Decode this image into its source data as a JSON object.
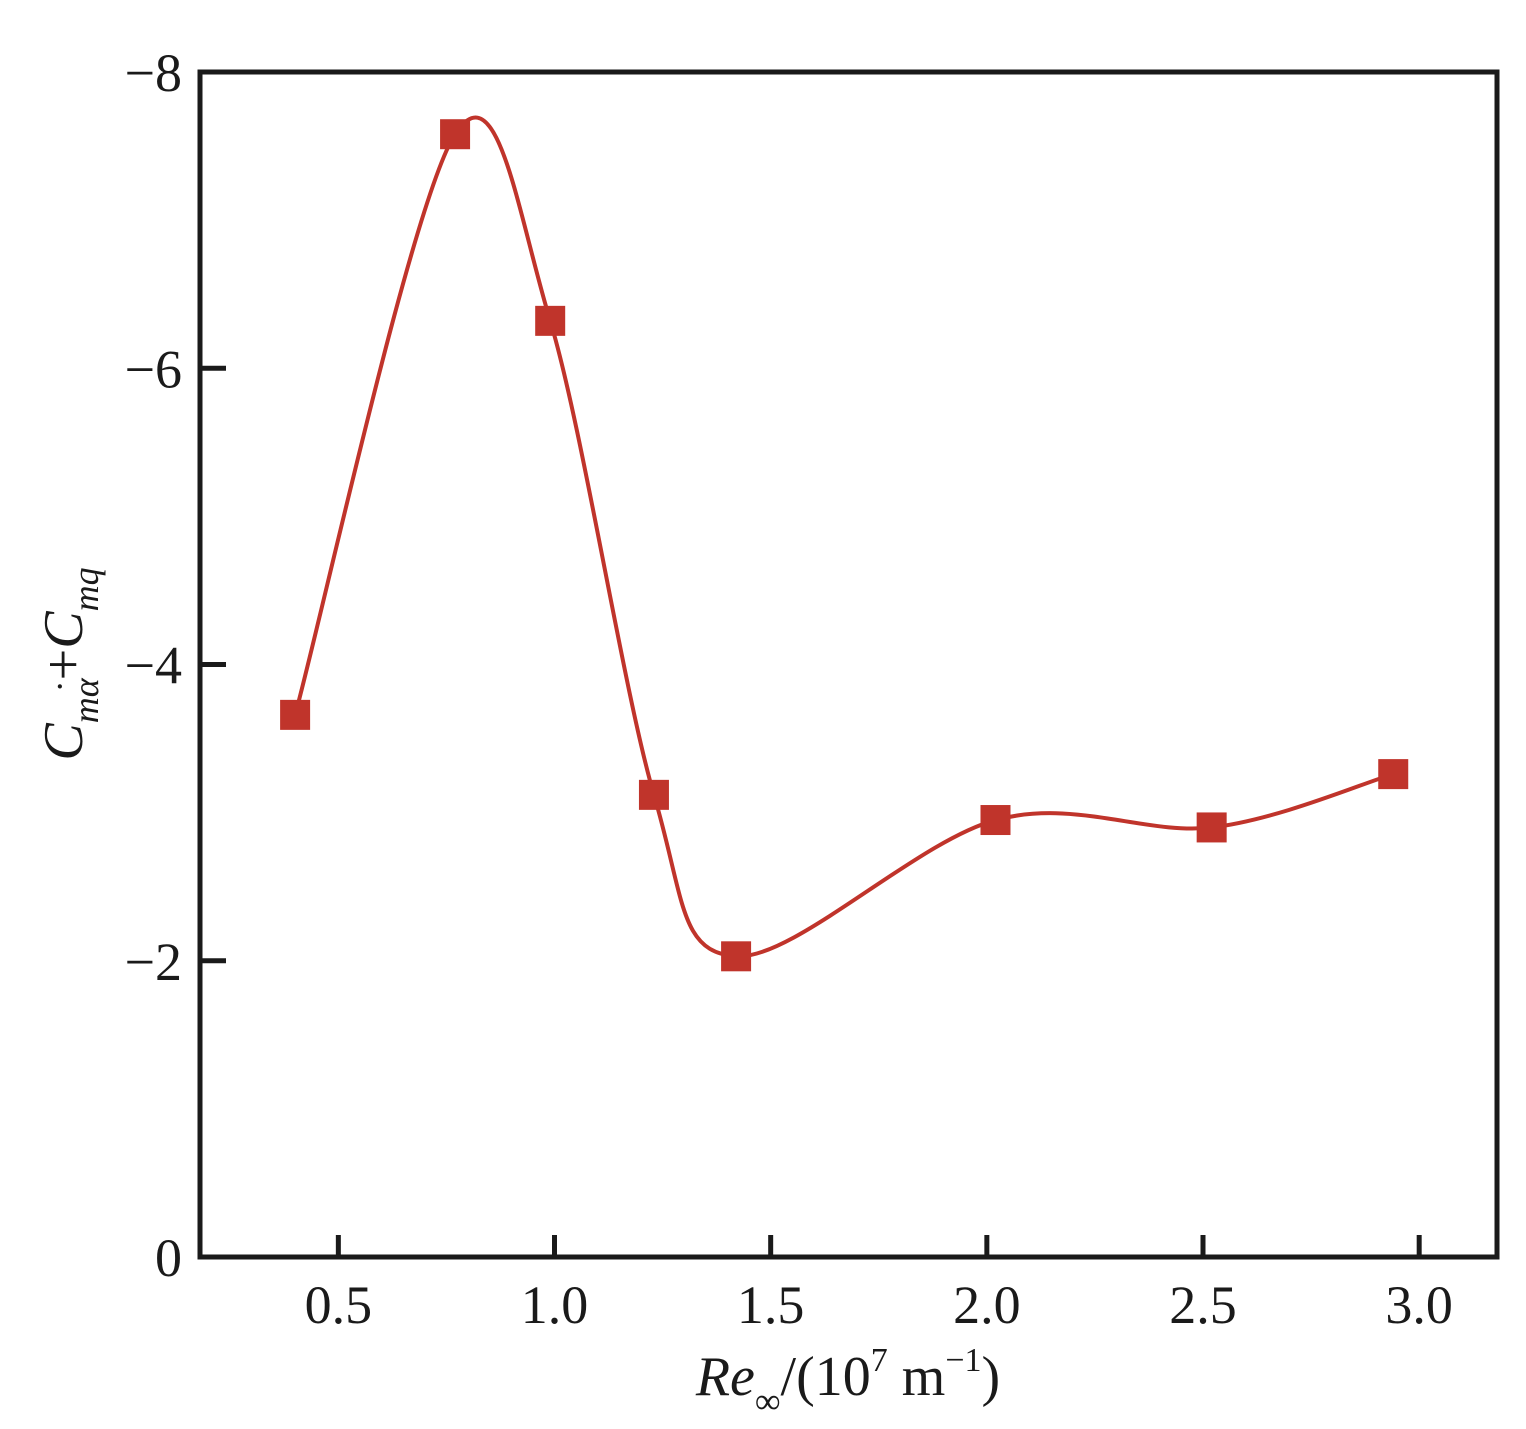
{
  "chart_data": {
    "type": "line",
    "xlabel": {
      "var": "Re",
      "sub": "∞",
      "unit_open": "/(10",
      "unit_exp": "7",
      "unit_mid": " m",
      "unit_exp2": "−1",
      "unit_close": ")"
    },
    "ylabel": {
      "c1": "C",
      "sub1": "m",
      "sub1b": "α",
      "dot": "·",
      "plus": "+",
      "c2": "C",
      "sub2": "mq"
    },
    "xlim": [
      0.18,
      3.18
    ],
    "ylim": [
      0,
      -8
    ],
    "y_inverted": true,
    "xticks": [
      0.5,
      1.0,
      1.5,
      2.0,
      2.5,
      3.0
    ],
    "xtick_labels": [
      "0.5",
      "1.0",
      "1.5",
      "2.0",
      "2.5",
      "3.0"
    ],
    "yticks": [
      0,
      -2,
      -4,
      -6,
      -8
    ],
    "ytick_labels": [
      "0",
      "−2",
      "−4",
      "−6",
      "−8"
    ],
    "grid": false,
    "legend": "none",
    "series": [
      {
        "marker": "square",
        "color": "#c0342b",
        "smooth": true,
        "x": [
          0.4,
          0.77,
          0.99,
          1.23,
          1.42,
          2.02,
          2.52,
          2.94
        ],
        "y": [
          -3.66,
          -7.58,
          -6.32,
          -3.12,
          -2.03,
          -2.95,
          -2.9,
          -3.26
        ]
      }
    ]
  }
}
